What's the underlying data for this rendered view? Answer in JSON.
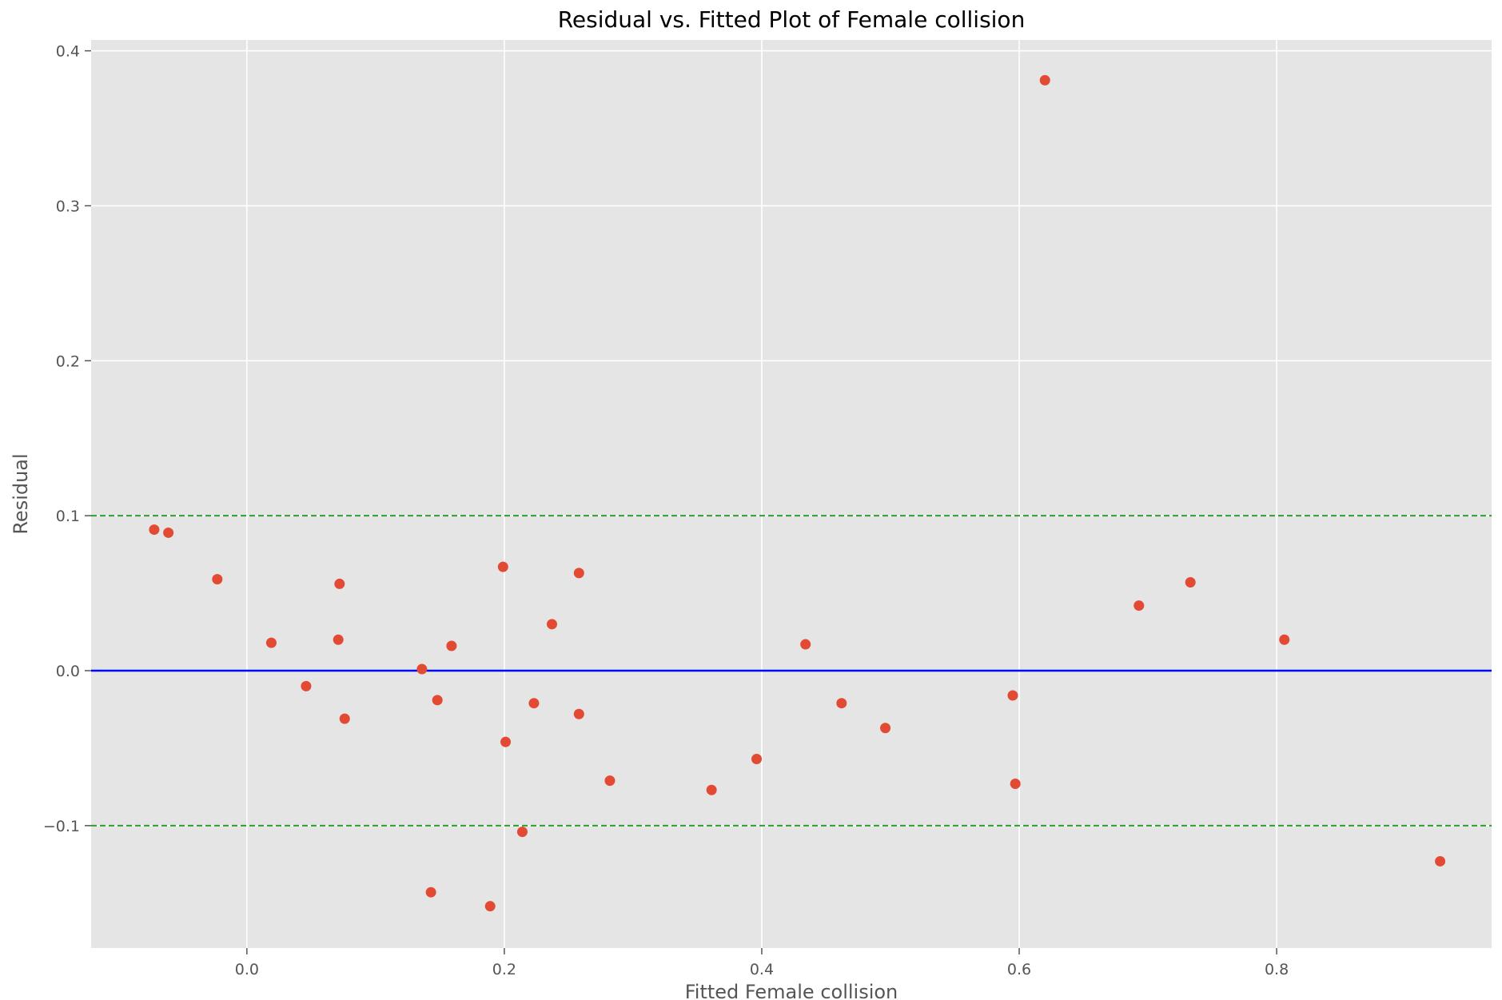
{
  "chart_data": {
    "type": "scatter",
    "title": "Residual vs. Fitted Plot of Female collision",
    "xlabel": "Fitted Female collision",
    "ylabel": "Residual",
    "xlim": [
      -0.121,
      0.967
    ],
    "ylim": [
      -0.179,
      0.407
    ],
    "grid": true,
    "x_ticks": [
      0.0,
      0.2,
      0.4,
      0.6,
      0.8
    ],
    "x_tick_labels": [
      "0.0",
      "0.2",
      "0.4",
      "0.6",
      "0.8"
    ],
    "y_ticks": [
      -0.1,
      0.0,
      0.1,
      0.2,
      0.3,
      0.4
    ],
    "y_tick_labels": [
      "−0.1",
      "0.0",
      "0.1",
      "0.2",
      "0.3",
      "0.4"
    ],
    "reference_lines": [
      {
        "y": 0.0,
        "style": "solid",
        "color": "#0000ff"
      },
      {
        "y": 0.1,
        "style": "dashed",
        "color": "#2ca02c"
      },
      {
        "y": -0.1,
        "style": "dashed",
        "color": "#2ca02c"
      }
    ],
    "point_color": "#e24a33",
    "background_color": "#e5e5e5",
    "points": [
      {
        "x": -0.072,
        "y": 0.091
      },
      {
        "x": -0.061,
        "y": 0.089
      },
      {
        "x": -0.023,
        "y": 0.059
      },
      {
        "x": 0.019,
        "y": 0.018
      },
      {
        "x": 0.046,
        "y": -0.01
      },
      {
        "x": 0.072,
        "y": 0.056
      },
      {
        "x": 0.071,
        "y": 0.02
      },
      {
        "x": 0.076,
        "y": -0.031
      },
      {
        "x": 0.136,
        "y": 0.001
      },
      {
        "x": 0.143,
        "y": -0.143
      },
      {
        "x": 0.148,
        "y": -0.019
      },
      {
        "x": 0.159,
        "y": 0.016
      },
      {
        "x": 0.189,
        "y": -0.152
      },
      {
        "x": 0.199,
        "y": 0.067
      },
      {
        "x": 0.201,
        "y": -0.046
      },
      {
        "x": 0.214,
        "y": -0.104
      },
      {
        "x": 0.223,
        "y": -0.021
      },
      {
        "x": 0.237,
        "y": 0.03
      },
      {
        "x": 0.258,
        "y": 0.063
      },
      {
        "x": 0.258,
        "y": -0.028
      },
      {
        "x": 0.282,
        "y": -0.071
      },
      {
        "x": 0.361,
        "y": -0.077
      },
      {
        "x": 0.396,
        "y": -0.057
      },
      {
        "x": 0.434,
        "y": 0.017
      },
      {
        "x": 0.462,
        "y": -0.021
      },
      {
        "x": 0.496,
        "y": -0.037
      },
      {
        "x": 0.595,
        "y": -0.016
      },
      {
        "x": 0.597,
        "y": -0.073
      },
      {
        "x": 0.62,
        "y": 0.381
      },
      {
        "x": 0.693,
        "y": 0.042
      },
      {
        "x": 0.733,
        "y": 0.057
      },
      {
        "x": 0.806,
        "y": 0.02
      },
      {
        "x": 0.927,
        "y": -0.123
      }
    ]
  }
}
